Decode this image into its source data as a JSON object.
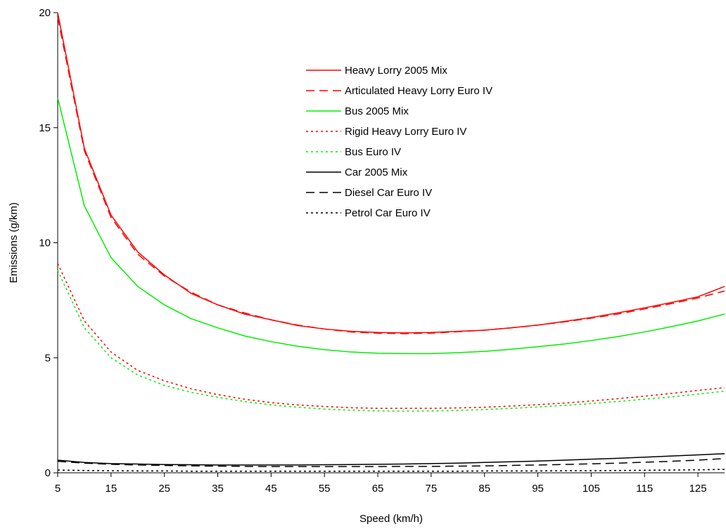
{
  "chart_data": {
    "type": "line",
    "title": "",
    "xlabel": "Speed (km/h)",
    "ylabel": "Emissions (g/km)",
    "xlim": [
      5,
      130
    ],
    "ylim": [
      0,
      20
    ],
    "x_ticks": [
      "5",
      "15",
      "25",
      "35",
      "45",
      "55",
      "65",
      "75",
      "85",
      "95",
      "105",
      "115",
      "125"
    ],
    "y_ticks": [
      "0",
      "5",
      "10",
      "15",
      "20"
    ],
    "grid": false,
    "legend_position": "top-center",
    "x": [
      5,
      10,
      15,
      20,
      25,
      30,
      35,
      40,
      45,
      50,
      55,
      60,
      65,
      70,
      75,
      80,
      85,
      90,
      95,
      100,
      105,
      110,
      115,
      120,
      125,
      130
    ],
    "series": [
      {
        "name": "Heavy Lorry 2005 Mix",
        "color": "#ff0000",
        "dash": "solid",
        "values": [
          20.0,
          14.1,
          11.2,
          9.6,
          8.6,
          7.8,
          7.3,
          6.9,
          6.65,
          6.4,
          6.25,
          6.15,
          6.1,
          6.08,
          6.1,
          6.15,
          6.2,
          6.3,
          6.42,
          6.58,
          6.75,
          6.95,
          7.17,
          7.4,
          7.65,
          8.1
        ]
      },
      {
        "name": "Articulated Heavy Lorry Euro IV",
        "color": "#ff0000",
        "dash": "dashed",
        "values": [
          19.8,
          14.0,
          11.1,
          9.5,
          8.55,
          7.85,
          7.3,
          6.95,
          6.65,
          6.42,
          6.25,
          6.12,
          6.07,
          6.05,
          6.07,
          6.13,
          6.2,
          6.3,
          6.42,
          6.56,
          6.72,
          6.9,
          7.12,
          7.35,
          7.6,
          7.9
        ]
      },
      {
        "name": "Bus 2005 Mix",
        "color": "#00ee00",
        "dash": "solid",
        "values": [
          16.3,
          11.6,
          9.35,
          8.1,
          7.3,
          6.7,
          6.3,
          5.95,
          5.7,
          5.5,
          5.35,
          5.25,
          5.2,
          5.18,
          5.18,
          5.22,
          5.28,
          5.37,
          5.48,
          5.6,
          5.75,
          5.92,
          6.12,
          6.35,
          6.6,
          6.9
        ]
      },
      {
        "name": "Rigid Heavy Lorry Euro IV",
        "color": "#ff0000",
        "dash": "dotted",
        "values": [
          9.1,
          6.6,
          5.25,
          4.45,
          4.0,
          3.65,
          3.4,
          3.2,
          3.05,
          2.95,
          2.88,
          2.83,
          2.8,
          2.8,
          2.8,
          2.82,
          2.85,
          2.9,
          2.96,
          3.03,
          3.12,
          3.22,
          3.33,
          3.45,
          3.58,
          3.7
        ]
      },
      {
        "name": "Bus Euro IV",
        "color": "#00ee00",
        "dash": "dotted",
        "values": [
          8.8,
          6.3,
          5.0,
          4.25,
          3.8,
          3.5,
          3.28,
          3.1,
          2.95,
          2.85,
          2.77,
          2.72,
          2.69,
          2.68,
          2.69,
          2.71,
          2.75,
          2.8,
          2.86,
          2.93,
          3.01,
          3.1,
          3.2,
          3.3,
          3.42,
          3.55
        ]
      },
      {
        "name": "Car 2005 Mix",
        "color": "#000000",
        "dash": "solid",
        "values": [
          0.55,
          0.45,
          0.4,
          0.38,
          0.36,
          0.35,
          0.34,
          0.34,
          0.34,
          0.34,
          0.35,
          0.36,
          0.37,
          0.38,
          0.4,
          0.42,
          0.45,
          0.48,
          0.51,
          0.55,
          0.59,
          0.63,
          0.68,
          0.73,
          0.78,
          0.83
        ]
      },
      {
        "name": "Diesel Car Euro IV",
        "color": "#000000",
        "dash": "dashed",
        "values": [
          0.5,
          0.42,
          0.37,
          0.34,
          0.32,
          0.3,
          0.29,
          0.28,
          0.27,
          0.27,
          0.27,
          0.27,
          0.27,
          0.28,
          0.28,
          0.29,
          0.3,
          0.32,
          0.34,
          0.36,
          0.39,
          0.42,
          0.46,
          0.5,
          0.55,
          0.62
        ]
      },
      {
        "name": "Petrol Car Euro IV",
        "color": "#000000",
        "dash": "dotted",
        "values": [
          0.12,
          0.1,
          0.09,
          0.08,
          0.08,
          0.07,
          0.07,
          0.07,
          0.07,
          0.07,
          0.07,
          0.07,
          0.07,
          0.07,
          0.07,
          0.07,
          0.08,
          0.08,
          0.08,
          0.09,
          0.09,
          0.1,
          0.11,
          0.12,
          0.13,
          0.15
        ]
      }
    ]
  }
}
